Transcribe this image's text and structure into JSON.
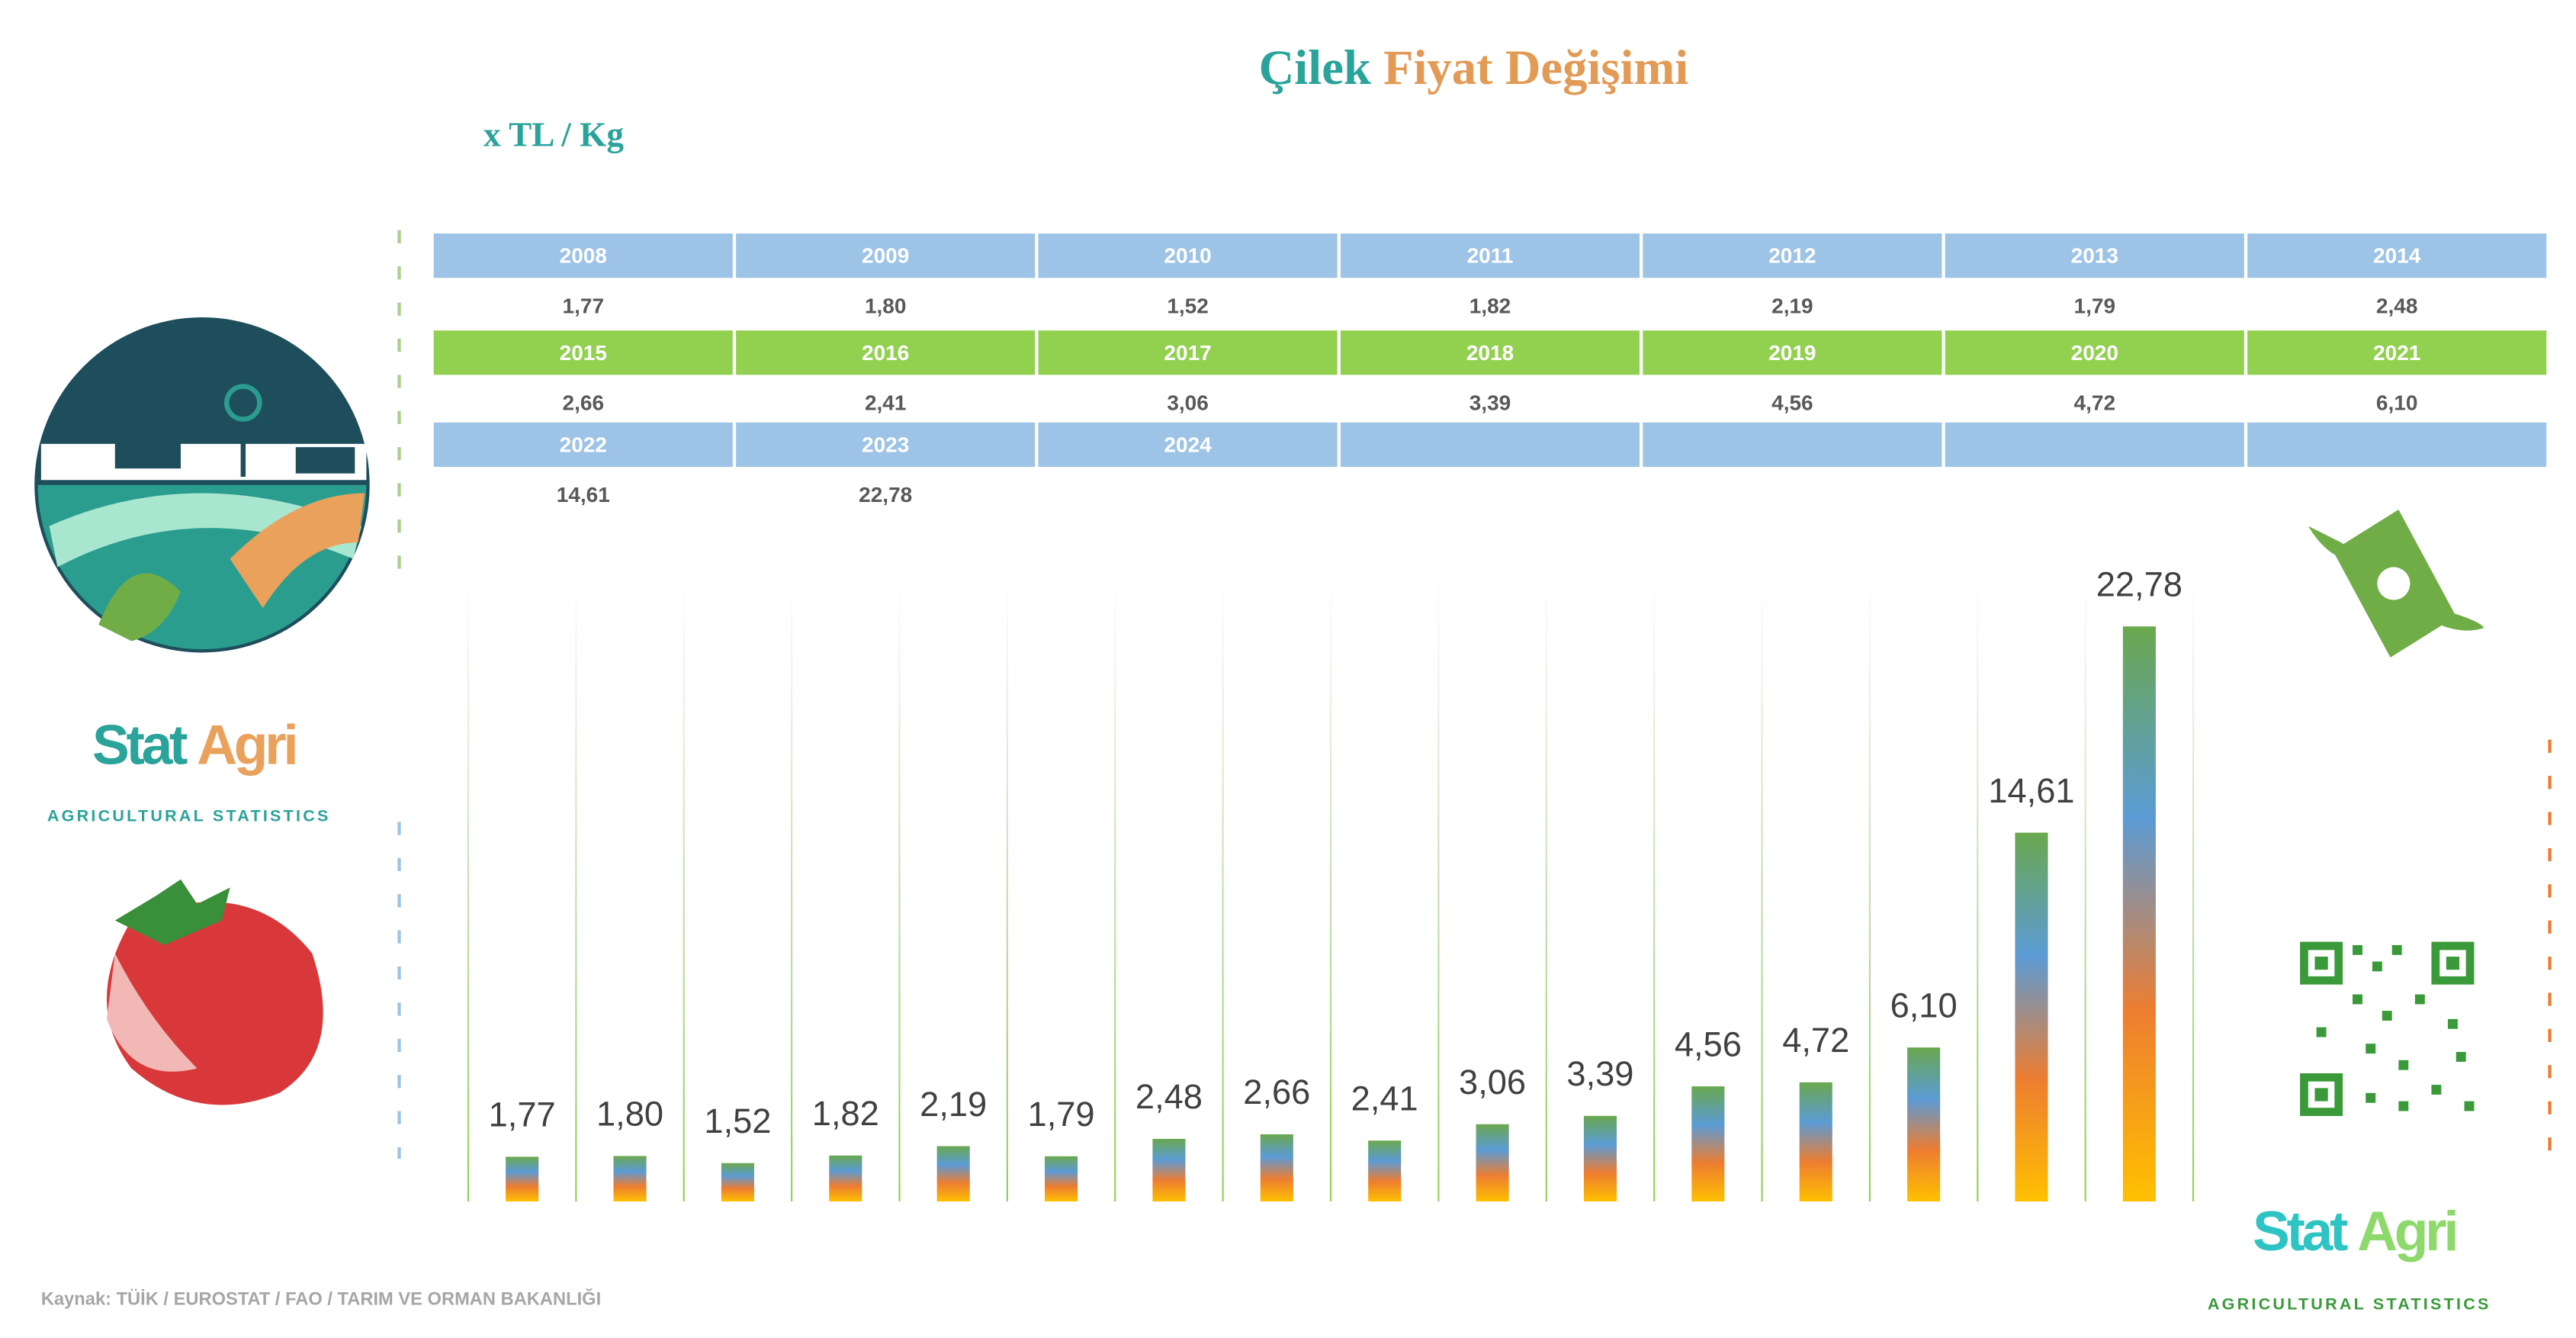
{
  "chart_data": {
    "type": "bar",
    "title": [
      "Çilek",
      "Fiyat Değişimi"
    ],
    "y_label": "x TL / Kg",
    "categories": [
      "2008",
      "2009",
      "2010",
      "2011",
      "2012",
      "2013",
      "2014",
      "2015",
      "2016",
      "2017",
      "2018",
      "2019",
      "2020",
      "2021",
      "2022",
      "2023",
      "2024"
    ],
    "values": [
      1.77,
      1.8,
      1.52,
      1.82,
      2.19,
      1.79,
      2.48,
      2.66,
      2.41,
      3.06,
      3.39,
      4.56,
      4.72,
      6.1,
      14.61,
      22.78,
      null
    ],
    "value_labels": [
      "1,77",
      "1,80",
      "1,52",
      "1,82",
      "2,19",
      "1,79",
      "2,48",
      "2,66",
      "2,41",
      "3,06",
      "3,39",
      "4,56",
      "4,72",
      "6,10",
      "14,61",
      "22,78",
      null
    ],
    "ylim": [
      0,
      25
    ],
    "colors": [
      "#6aa84f",
      "#5b9bd5",
      "#ed7d31",
      "#ffc000"
    ],
    "source": "Kaynak: TÜİK / EUROSTAT / FAO / TARIM VE ORMAN BAKANLIĞI"
  },
  "logo": {
    "name": [
      "Stat",
      "Agri"
    ],
    "tagline": "AGRICULTURAL STATISTICS"
  }
}
